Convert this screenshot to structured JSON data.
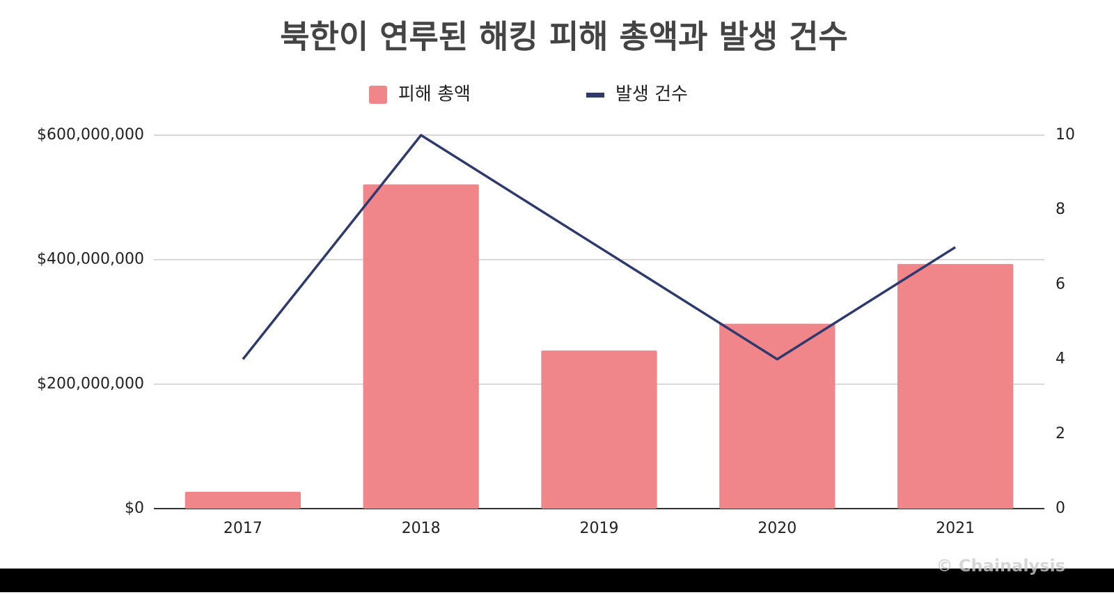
{
  "chart_data": {
    "type": "bar-line",
    "title": "북한이 연루된 해킹 피해 총액과 발생 건수",
    "categories": [
      "2017",
      "2018",
      "2019",
      "2020",
      "2021"
    ],
    "series": [
      {
        "name": "피해 총액",
        "type": "bar",
        "color": "#f0868a",
        "values": [
          27000000,
          521000000,
          254000000,
          297000000,
          393000000
        ]
      },
      {
        "name": "발생 건수",
        "type": "line",
        "color": "#2e3a6e",
        "axis": "y2",
        "values": [
          4,
          10,
          7,
          4,
          7
        ]
      }
    ],
    "ylim": [
      0,
      600000000
    ],
    "yticks": [
      {
        "value": 0,
        "label": "$0"
      },
      {
        "value": 200000000,
        "label": "$200,000,000"
      },
      {
        "value": 400000000,
        "label": "$400,000,000"
      },
      {
        "value": 600000000,
        "label": "$600,000,000"
      }
    ],
    "y2lim": [
      0,
      10
    ],
    "y2ticks": [
      0,
      2,
      4,
      6,
      8,
      10
    ],
    "grid": true,
    "legend": "top",
    "watermark": "© Chainalysis"
  }
}
